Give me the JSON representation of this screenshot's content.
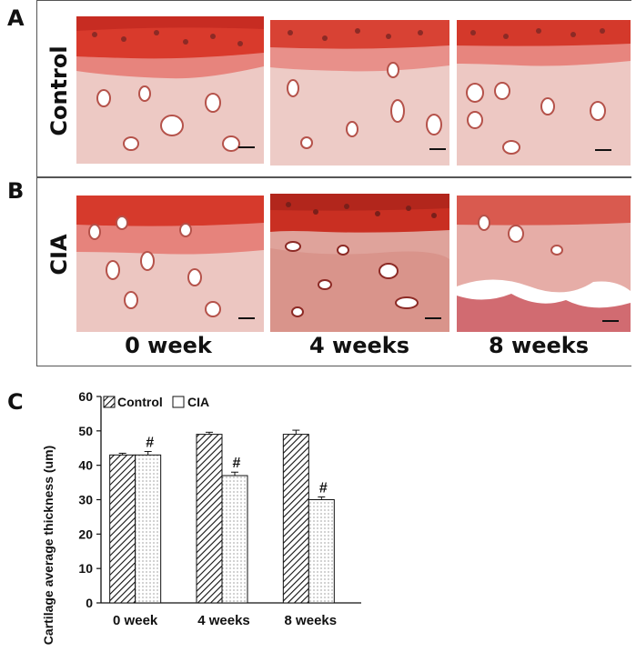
{
  "panels": {
    "a_letter": "A",
    "b_letter": "B",
    "c_letter": "C",
    "row_control_label": "Control",
    "row_cia_label": "CIA",
    "time_labels": [
      "0 week",
      "4 weeks",
      "8 weeks"
    ]
  },
  "colors": {
    "tissue_top": "#d93a2c",
    "tissue_mid": "#e7847d",
    "tissue_matrix": "#edc9c4",
    "chart_ink": "#111111"
  },
  "chart_data": {
    "type": "bar",
    "categories": [
      "0 week",
      "4 weeks",
      "8 weeks"
    ],
    "series": [
      {
        "name": "Control",
        "values": [
          43,
          49,
          49
        ],
        "errors": [
          0.5,
          0.6,
          1.2
        ],
        "pattern": "diagonal-hatch"
      },
      {
        "name": "CIA",
        "values": [
          43,
          37,
          30
        ],
        "errors": [
          1.0,
          1.0,
          0.8
        ],
        "pattern": "dots"
      }
    ],
    "significance": [
      "#",
      "#",
      "#"
    ],
    "title": "",
    "xlabel": "",
    "ylabel": "Cartilage average thickness (um)",
    "ylim": [
      0,
      60
    ],
    "yticks": [
      "0",
      "10",
      "20",
      "30",
      "40",
      "50",
      "60"
    ],
    "legend_position": "top"
  }
}
